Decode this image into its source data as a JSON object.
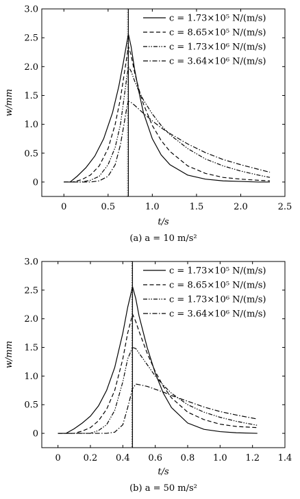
{
  "chart_data": [
    {
      "type": "line",
      "caption": "(a)  a = 10 m/s²",
      "xlabel": "t/s",
      "ylabel": "w/mm",
      "xlim": [
        -0.25,
        2.5
      ],
      "ylim": [
        -0.25,
        3.0
      ],
      "xticks": [
        0,
        0.5,
        1.0,
        1.5,
        2.0,
        2.5
      ],
      "xtick_labels": [
        "0",
        "0.5",
        "1.0",
        "1.5",
        "2.0",
        "2.5"
      ],
      "yticks": [
        0,
        0.5,
        1.0,
        1.5,
        2.0,
        2.5,
        3.0
      ],
      "ytick_labels": [
        "0",
        "0.5",
        "1.0",
        "1.5",
        "2.0",
        "2.5",
        "3.0"
      ],
      "vline_solid_x": 0.73,
      "vline_dotted_x": 0.72,
      "legend_position": "top-right",
      "series": [
        {
          "name": "c = 1.73×10⁵ N/(m/s)",
          "dash": "solid",
          "x": [
            0.0,
            0.07,
            0.15,
            0.25,
            0.35,
            0.45,
            0.55,
            0.62,
            0.67,
            0.71,
            0.73,
            0.76,
            0.8,
            0.85,
            0.9,
            1.0,
            1.1,
            1.2,
            1.4,
            1.6,
            1.8,
            2.0,
            2.2,
            2.33
          ],
          "y": [
            0.0,
            0.0,
            0.1,
            0.25,
            0.45,
            0.75,
            1.2,
            1.65,
            2.05,
            2.4,
            2.56,
            2.35,
            1.95,
            1.55,
            1.2,
            0.75,
            0.47,
            0.3,
            0.12,
            0.05,
            0.02,
            0.01,
            0.0,
            0.0
          ]
        },
        {
          "name": "c = 8.65×10⁵ N/(m/s)",
          "dash": "dash",
          "x": [
            0.0,
            0.1,
            0.2,
            0.3,
            0.4,
            0.5,
            0.58,
            0.64,
            0.68,
            0.71,
            0.73,
            0.76,
            0.8,
            0.85,
            0.9,
            1.0,
            1.1,
            1.2,
            1.4,
            1.6,
            1.8,
            2.0,
            2.2,
            2.33
          ],
          "y": [
            0.0,
            0.0,
            0.04,
            0.12,
            0.28,
            0.58,
            1.0,
            1.45,
            1.85,
            2.15,
            2.35,
            2.2,
            1.9,
            1.6,
            1.35,
            0.98,
            0.72,
            0.53,
            0.28,
            0.15,
            0.08,
            0.05,
            0.03,
            0.02
          ]
        },
        {
          "name": "c = 1.73×10⁶ N/(m/s)",
          "dash": "dash-dot-dot",
          "x": [
            0.0,
            0.2,
            0.3,
            0.4,
            0.5,
            0.58,
            0.64,
            0.68,
            0.71,
            0.73,
            0.76,
            0.8,
            0.85,
            0.9,
            1.0,
            1.1,
            1.2,
            1.4,
            1.6,
            1.8,
            2.0,
            2.2,
            2.33
          ],
          "y": [
            0.0,
            0.0,
            0.03,
            0.1,
            0.3,
            0.6,
            1.0,
            1.45,
            1.8,
            2.0,
            1.92,
            1.75,
            1.57,
            1.42,
            1.18,
            0.98,
            0.82,
            0.58,
            0.4,
            0.28,
            0.19,
            0.12,
            0.08
          ]
        },
        {
          "name": "c = 3.64×10⁶ N/(m/s)",
          "dash": "dash-dot",
          "x": [
            0.0,
            0.3,
            0.4,
            0.5,
            0.58,
            0.64,
            0.68,
            0.71,
            0.73,
            0.76,
            0.8,
            0.85,
            0.9,
            1.0,
            1.1,
            1.2,
            1.4,
            1.6,
            1.8,
            2.0,
            2.2,
            2.33
          ],
          "y": [
            0.0,
            0.0,
            0.02,
            0.1,
            0.3,
            0.65,
            1.0,
            1.28,
            1.4,
            1.38,
            1.33,
            1.26,
            1.19,
            1.06,
            0.94,
            0.84,
            0.66,
            0.51,
            0.39,
            0.3,
            0.22,
            0.17
          ]
        }
      ]
    },
    {
      "type": "line",
      "caption": "(b)  a = 50 m/s²",
      "xlabel": "t/s",
      "ylabel": "w/mm",
      "xlim": [
        -0.1,
        1.4
      ],
      "ylim": [
        -0.25,
        3.0
      ],
      "xticks": [
        0,
        0.2,
        0.4,
        0.6,
        0.8,
        1.0,
        1.2,
        1.4
      ],
      "xtick_labels": [
        "0",
        "0.2",
        "0.4",
        "0.6",
        "0.8",
        "1.0",
        "1.2",
        "1.4"
      ],
      "yticks": [
        0,
        0.5,
        1.0,
        1.5,
        2.0,
        2.5,
        3.0
      ],
      "ytick_labels": [
        "0",
        "0.5",
        "1.0",
        "1.5",
        "2.0",
        "2.5",
        "3.0"
      ],
      "vline_solid_x": 0.46,
      "vline_dotted_x": 0.455,
      "legend_position": "top-right",
      "series": [
        {
          "name": "c = 1.73×10⁵ N/(m/s)",
          "dash": "solid",
          "x": [
            0.0,
            0.05,
            0.1,
            0.15,
            0.2,
            0.25,
            0.3,
            0.35,
            0.4,
            0.43,
            0.46,
            0.48,
            0.5,
            0.55,
            0.6,
            0.65,
            0.7,
            0.8,
            0.9,
            1.0,
            1.1,
            1.23
          ],
          "y": [
            0.0,
            0.0,
            0.08,
            0.18,
            0.3,
            0.48,
            0.75,
            1.15,
            1.75,
            2.2,
            2.56,
            2.35,
            2.05,
            1.5,
            1.05,
            0.7,
            0.45,
            0.18,
            0.07,
            0.03,
            0.01,
            0.0
          ]
        },
        {
          "name": "c = 8.65×10⁵ N/(m/s)",
          "dash": "dash",
          "x": [
            0.0,
            0.1,
            0.15,
            0.2,
            0.25,
            0.3,
            0.35,
            0.4,
            0.43,
            0.46,
            0.48,
            0.5,
            0.55,
            0.6,
            0.65,
            0.7,
            0.8,
            0.9,
            1.0,
            1.1,
            1.23
          ],
          "y": [
            0.0,
            0.0,
            0.04,
            0.1,
            0.22,
            0.42,
            0.75,
            1.3,
            1.75,
            2.08,
            1.95,
            1.78,
            1.4,
            1.08,
            0.82,
            0.62,
            0.37,
            0.24,
            0.16,
            0.12,
            0.1
          ]
        },
        {
          "name": "c = 1.73×10⁶ N/(m/s)",
          "dash": "dash-dot-dot",
          "x": [
            0.0,
            0.2,
            0.25,
            0.3,
            0.35,
            0.4,
            0.43,
            0.46,
            0.48,
            0.5,
            0.55,
            0.6,
            0.65,
            0.7,
            0.8,
            0.9,
            1.0,
            1.1,
            1.23
          ],
          "y": [
            0.0,
            0.0,
            0.05,
            0.15,
            0.4,
            0.9,
            1.3,
            1.5,
            1.48,
            1.4,
            1.2,
            1.0,
            0.84,
            0.7,
            0.5,
            0.37,
            0.28,
            0.21,
            0.14
          ]
        },
        {
          "name": "c = 3.64×10⁶ N/(m/s)",
          "dash": "dash-dot",
          "x": [
            0.0,
            0.3,
            0.35,
            0.4,
            0.43,
            0.46,
            0.48,
            0.5,
            0.55,
            0.6,
            0.65,
            0.7,
            0.8,
            0.9,
            1.0,
            1.1,
            1.23
          ],
          "y": [
            0.0,
            0.0,
            0.02,
            0.15,
            0.45,
            0.78,
            0.86,
            0.85,
            0.82,
            0.77,
            0.72,
            0.66,
            0.56,
            0.46,
            0.38,
            0.32,
            0.25
          ]
        }
      ]
    }
  ]
}
